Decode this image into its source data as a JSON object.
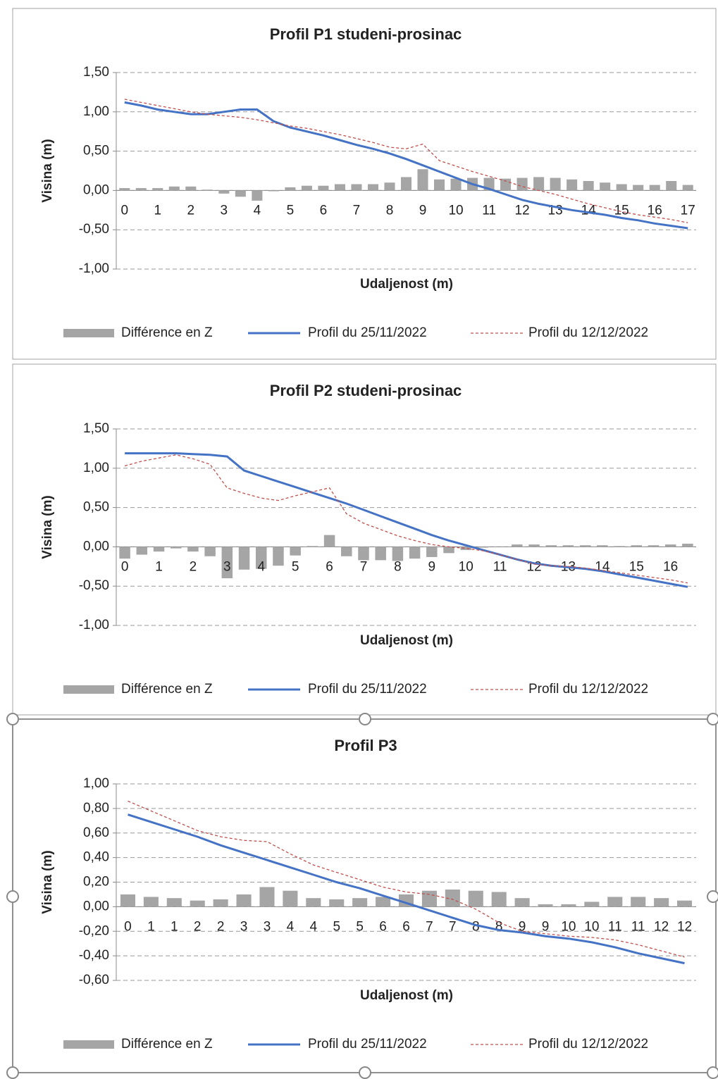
{
  "chart_data": [
    {
      "type": "combo",
      "title": "Profil P1 studeni-prosinac",
      "xlabel": "Udaljenost (m)",
      "ylabel": "Visina (m)",
      "grid": true,
      "legend": "bottom",
      "categories": [
        "0",
        null,
        "1",
        null,
        "2",
        null,
        "3",
        null,
        "4",
        null,
        "5",
        null,
        "6",
        null,
        "7",
        null,
        "8",
        null,
        "9",
        null,
        "10",
        null,
        "11",
        null,
        "12",
        null,
        "13",
        null,
        "14",
        null,
        "15",
        null,
        "16",
        null,
        "17"
      ],
      "ylim": [
        -1,
        1.5
      ],
      "yticks": [
        {
          "value": -1,
          "label": "-1,00"
        },
        {
          "value": -0.5,
          "label": "-0,50"
        },
        {
          "value": 0,
          "label": "0,00"
        },
        {
          "value": 0.5,
          "label": "0,50"
        },
        {
          "value": 1,
          "label": "1,00"
        },
        {
          "value": 1.5,
          "label": "1,50"
        }
      ],
      "series": [
        {
          "name": "Différence en Z",
          "type": "bar",
          "color": "#a5a5a5",
          "values": [
            0.03,
            0.03,
            0.03,
            0.05,
            0.05,
            0.01,
            -0.04,
            -0.08,
            -0.13,
            -0.01,
            0.04,
            0.06,
            0.06,
            0.08,
            0.08,
            0.08,
            0.1,
            0.17,
            0.27,
            0.14,
            0.15,
            0.16,
            0.16,
            0.15,
            0.16,
            0.17,
            0.16,
            0.14,
            0.12,
            0.1,
            0.08,
            0.07,
            0.07,
            0.12,
            0.07
          ]
        },
        {
          "name": "Profil du 25/11/2022",
          "type": "line",
          "style": "solid",
          "color": "#4472c4",
          "values": [
            1.12,
            1.08,
            1.03,
            1.0,
            0.97,
            0.97,
            1.0,
            1.03,
            1.03,
            0.88,
            0.8,
            0.75,
            0.7,
            0.64,
            0.58,
            0.53,
            0.47,
            0.4,
            0.32,
            0.24,
            0.16,
            0.08,
            0.02,
            -0.05,
            -0.12,
            -0.17,
            -0.21,
            -0.25,
            -0.28,
            -0.31,
            -0.35,
            -0.38,
            -0.42,
            -0.45,
            -0.48
          ]
        },
        {
          "name": "Profil du 12/12/2022",
          "type": "line",
          "style": "dashed",
          "color": "#c0504d",
          "values": [
            1.16,
            1.12,
            1.08,
            1.04,
            1.0,
            0.97,
            0.95,
            0.93,
            0.9,
            0.86,
            0.82,
            0.79,
            0.75,
            0.71,
            0.66,
            0.61,
            0.55,
            0.53,
            0.59,
            0.38,
            0.31,
            0.24,
            0.18,
            0.12,
            0.05,
            0.0,
            -0.05,
            -0.11,
            -0.17,
            -0.22,
            -0.27,
            -0.31,
            -0.34,
            -0.37,
            -0.41
          ]
        }
      ]
    },
    {
      "type": "combo",
      "title": "Profil P2 studeni-prosinac",
      "xlabel": "Udaljenost (m)",
      "ylabel": "Visina (m)",
      "grid": true,
      "legend": "bottom",
      "categories": [
        "0",
        null,
        "1",
        null,
        "2",
        null,
        "3",
        null,
        "4",
        null,
        "5",
        null,
        "6",
        null,
        "7",
        null,
        "8",
        null,
        "9",
        null,
        "10",
        null,
        "11",
        null,
        "12",
        null,
        "13",
        null,
        "14",
        null,
        "15",
        null,
        "16",
        null
      ],
      "ylim": [
        -1,
        1.5
      ],
      "yticks": [
        {
          "value": -1,
          "label": "-1,00"
        },
        {
          "value": -0.5,
          "label": "-0,50"
        },
        {
          "value": 0,
          "label": "0,00"
        },
        {
          "value": 0.5,
          "label": "0,50"
        },
        {
          "value": 1,
          "label": "1,00"
        },
        {
          "value": 1.5,
          "label": "1,50"
        }
      ],
      "series": [
        {
          "name": "Différence en Z",
          "type": "bar",
          "color": "#a5a5a5",
          "values": [
            -0.15,
            -0.1,
            -0.06,
            -0.02,
            -0.06,
            -0.12,
            -0.4,
            -0.29,
            -0.28,
            -0.24,
            -0.11,
            0.01,
            0.15,
            -0.12,
            -0.17,
            -0.17,
            -0.18,
            -0.15,
            -0.13,
            -0.08,
            -0.04,
            -0.01,
            0.0,
            0.03,
            0.03,
            0.02,
            0.02,
            0.02,
            0.02,
            0.01,
            0.02,
            0.02,
            0.03,
            0.04
          ]
        },
        {
          "name": "Profil du 25/11/2022",
          "type": "line",
          "style": "solid",
          "color": "#4472c4",
          "values": [
            1.19,
            1.19,
            1.19,
            1.19,
            1.18,
            1.17,
            1.15,
            0.97,
            0.9,
            0.83,
            0.76,
            0.69,
            0.62,
            0.55,
            0.47,
            0.39,
            0.31,
            0.23,
            0.15,
            0.08,
            0.02,
            -0.04,
            -0.1,
            -0.16,
            -0.21,
            -0.24,
            -0.26,
            -0.28,
            -0.31,
            -0.35,
            -0.39,
            -0.43,
            -0.47,
            -0.51
          ]
        },
        {
          "name": "Profil du 12/12/2022",
          "type": "line",
          "style": "dashed",
          "color": "#c0504d",
          "values": [
            1.03,
            1.09,
            1.13,
            1.17,
            1.12,
            1.05,
            0.75,
            0.68,
            0.62,
            0.59,
            0.65,
            0.7,
            0.75,
            0.42,
            0.3,
            0.22,
            0.14,
            0.08,
            0.03,
            0.0,
            -0.02,
            -0.05,
            -0.1,
            -0.16,
            -0.22,
            -0.24,
            -0.25,
            -0.27,
            -0.3,
            -0.33,
            -0.36,
            -0.39,
            -0.42,
            -0.46
          ]
        }
      ]
    },
    {
      "type": "combo",
      "title": "Profil P3",
      "xlabel": "Udaljenost (m)",
      "ylabel": "Visina (m)",
      "grid": true,
      "legend": "bottom",
      "categories": [
        "0",
        "1",
        "1",
        "2",
        "2",
        "3",
        "3",
        "4",
        "4",
        "5",
        "5",
        "6",
        "6",
        "7",
        "7",
        "8",
        "8",
        "9",
        "9",
        "10",
        "10",
        "11",
        "11",
        "12",
        "12"
      ],
      "ylim": [
        -0.6,
        1
      ],
      "yticks": [
        {
          "value": -0.6,
          "label": "-0,60"
        },
        {
          "value": -0.4,
          "label": "-0,40"
        },
        {
          "value": -0.2,
          "label": "-0,20"
        },
        {
          "value": 0,
          "label": "0,00"
        },
        {
          "value": 0.2,
          "label": "0,20"
        },
        {
          "value": 0.4,
          "label": "0,40"
        },
        {
          "value": 0.6,
          "label": "0,60"
        },
        {
          "value": 0.8,
          "label": "0,80"
        },
        {
          "value": 1,
          "label": "1,00"
        }
      ],
      "series": [
        {
          "name": "Différence en Z",
          "type": "bar",
          "color": "#a5a5a5",
          "values": [
            0.1,
            0.08,
            0.07,
            0.05,
            0.06,
            0.1,
            0.16,
            0.13,
            0.07,
            0.06,
            0.07,
            0.08,
            0.1,
            0.13,
            0.14,
            0.13,
            0.12,
            0.07,
            0.02,
            0.02,
            0.04,
            0.08,
            0.08,
            0.07,
            0.05
          ]
        },
        {
          "name": "Profil du 25/11/2022",
          "type": "line",
          "style": "solid",
          "color": "#4472c4",
          "values": [
            0.75,
            0.69,
            0.63,
            0.57,
            0.5,
            0.44,
            0.38,
            0.32,
            0.26,
            0.2,
            0.15,
            0.09,
            0.03,
            -0.03,
            -0.09,
            -0.15,
            -0.19,
            -0.21,
            -0.24,
            -0.26,
            -0.29,
            -0.33,
            -0.38,
            -0.42,
            -0.46
          ]
        },
        {
          "name": "Profil du 12/12/2022",
          "type": "line",
          "style": "dashed",
          "color": "#c0504d",
          "values": [
            0.86,
            0.78,
            0.7,
            0.62,
            0.57,
            0.54,
            0.53,
            0.43,
            0.34,
            0.28,
            0.22,
            0.16,
            0.12,
            0.1,
            0.06,
            -0.02,
            -0.13,
            -0.2,
            -0.22,
            -0.24,
            -0.25,
            -0.27,
            -0.31,
            -0.36,
            -0.41
          ]
        }
      ]
    }
  ]
}
